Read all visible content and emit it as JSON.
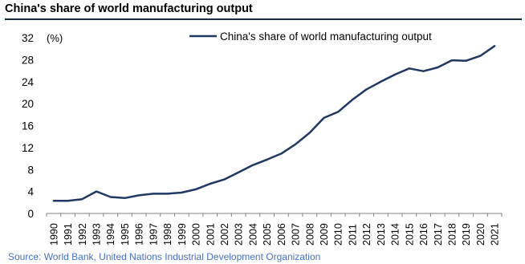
{
  "title": "China's share of world manufacturing output",
  "source": "Source: World Bank, United Nations Industrial Development Organization",
  "chart_data": {
    "type": "line",
    "title": "China's share of world manufacturing output",
    "unit_label": "(%)",
    "xlabel": "",
    "ylabel": "",
    "ylim": [
      0,
      32
    ],
    "yticks": [
      0,
      4,
      8,
      12,
      16,
      20,
      24,
      28,
      32
    ],
    "grid": false,
    "legend_position": "top",
    "line_color": "#1f3864",
    "x": [
      "1990",
      "1991",
      "1992",
      "1993",
      "1994",
      "1995",
      "1996",
      "1997",
      "1998",
      "1999",
      "2000",
      "2001",
      "2002",
      "2003",
      "2004",
      "2005",
      "2006",
      "2007",
      "2008",
      "2009",
      "2010",
      "2011",
      "2012",
      "2013",
      "2014",
      "2015",
      "2016",
      "2017",
      "2018",
      "2019",
      "2020",
      "2021"
    ],
    "series": [
      {
        "name": "China's share of world manufacturing output",
        "values": [
          2.3,
          2.3,
          2.6,
          4.0,
          3.0,
          2.8,
          3.3,
          3.6,
          3.6,
          3.8,
          4.4,
          5.4,
          6.2,
          7.5,
          8.8,
          9.8,
          10.9,
          12.6,
          14.7,
          17.4,
          18.5,
          20.7,
          22.6,
          24.0,
          25.3,
          26.4,
          25.9,
          26.6,
          27.9,
          27.8,
          28.7,
          30.5
        ]
      }
    ]
  }
}
